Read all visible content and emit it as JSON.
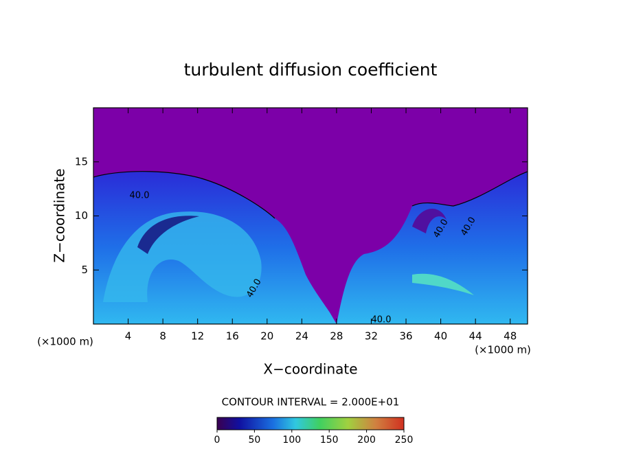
{
  "chart_data": {
    "type": "contour",
    "title": "turbulent diffusion coefficient",
    "x_label": "X−coordinate",
    "y_label": "Z−coordinate",
    "x_unit": "(×1000 m)",
    "xlim": [
      0,
      50
    ],
    "xticks": [
      4,
      8,
      12,
      16,
      20,
      24,
      28,
      32,
      36,
      40,
      44,
      48
    ],
    "ylim": [
      0,
      20
    ],
    "yticks": [
      5,
      10,
      15
    ],
    "contour_labels": [
      "40.0",
      "40.0",
      "40.0",
      "40.0",
      "40.0"
    ],
    "contour_interval_label": "CONTOUR INTERVAL = 2.000E+01",
    "colorbar": {
      "lim": [
        0,
        250
      ],
      "ticks": [
        0,
        50,
        100,
        150,
        200,
        250
      ]
    }
  }
}
